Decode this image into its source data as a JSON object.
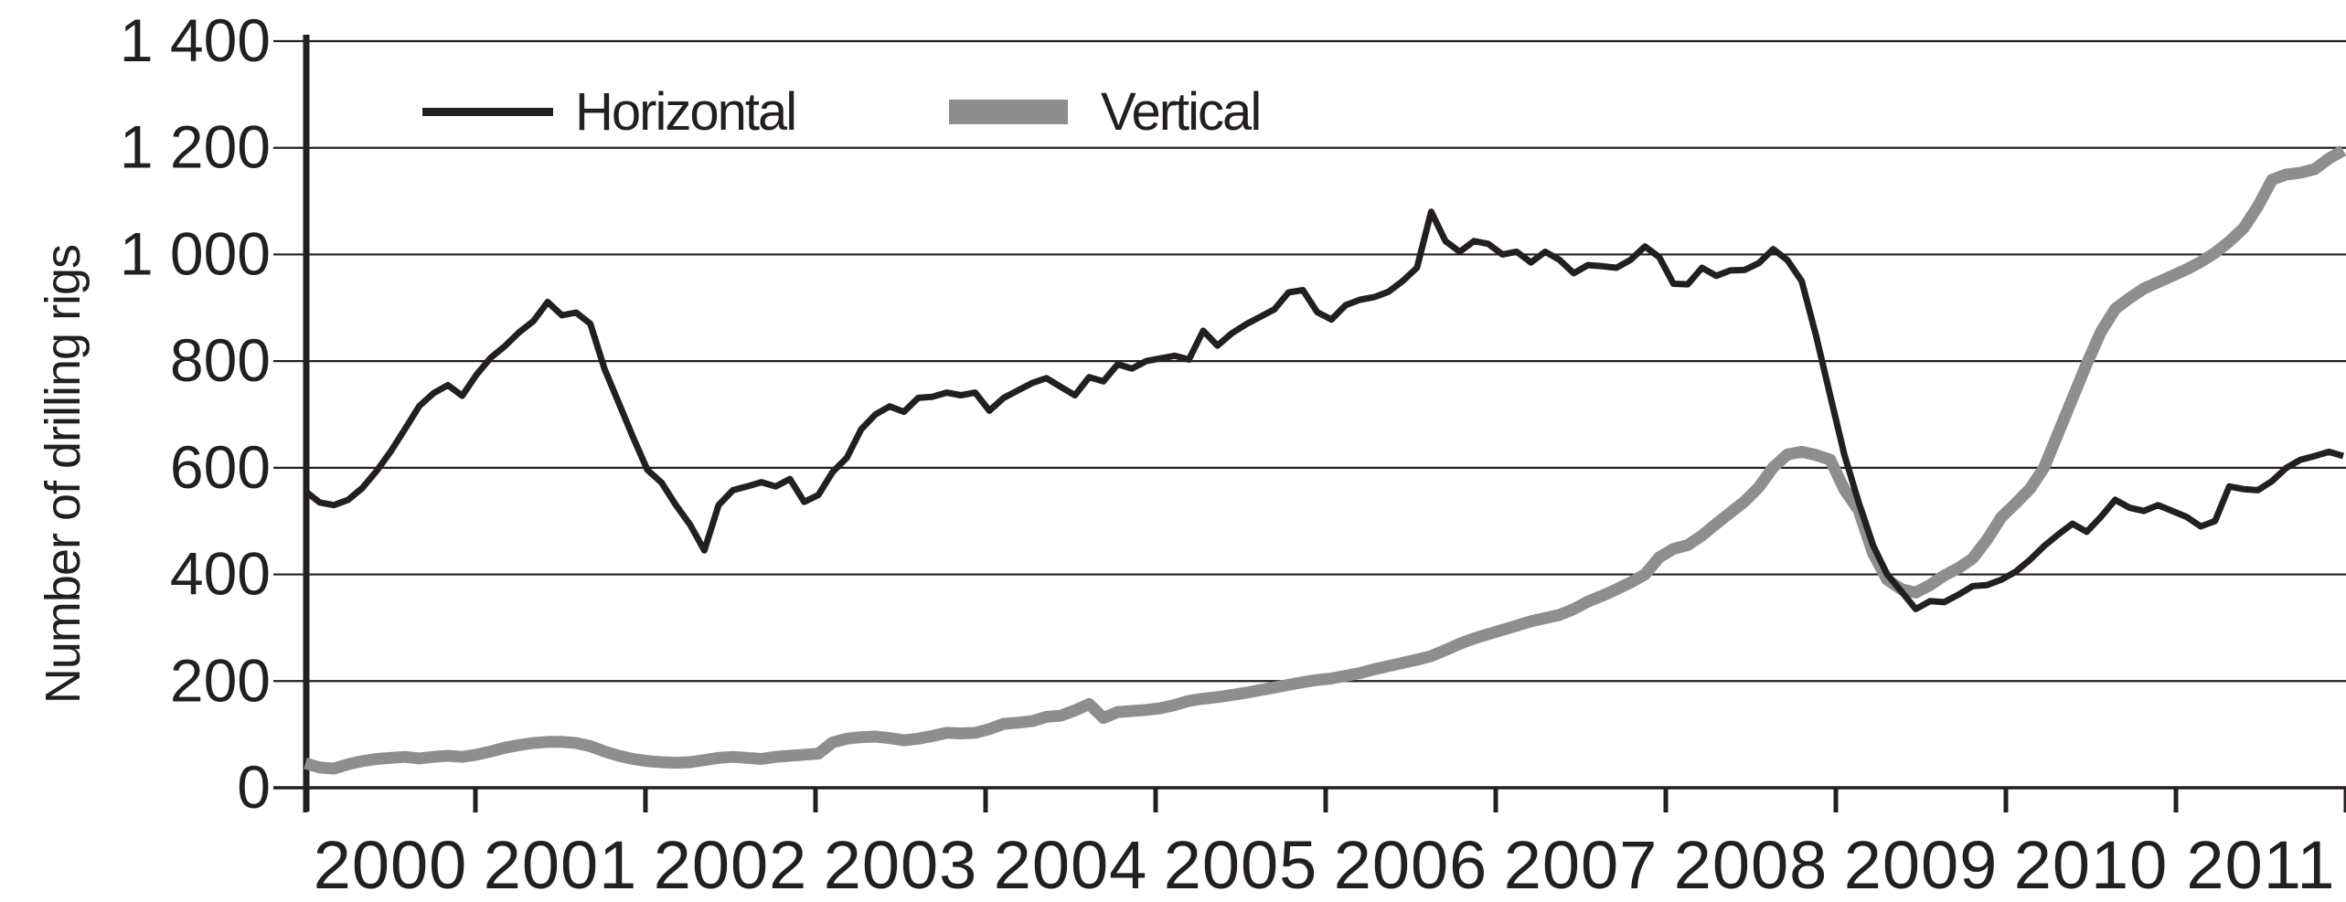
{
  "chart_data": {
    "type": "line",
    "title": "",
    "xlabel": "",
    "ylabel": "Number of drilling rigs",
    "ylim": [
      0,
      1400
    ],
    "grid": "horizontal",
    "legend_position": "top-inside",
    "y_ticks": [
      "0",
      "200",
      "400",
      "600",
      "800",
      "1 000",
      "1 200",
      "1 400"
    ],
    "y_tick_step": 200,
    "x_tick_labels": [
      "2000",
      "2001",
      "2002",
      "2003",
      "2004",
      "2005",
      "2006",
      "2007",
      "2008",
      "2009",
      "2010",
      "2011"
    ],
    "x_start": "2000-01",
    "x_end": "2011-12",
    "frequency": "monthly",
    "series": [
      {
        "name": "Horizontal",
        "color": "#231f20",
        "stroke_width": 7,
        "values": [
          556,
          535,
          530,
          540,
          562,
          594,
          631,
          673,
          716,
          740,
          755,
          735,
          774,
          806,
          828,
          854,
          875,
          911,
          886,
          891,
          870,
          785,
          721,
          657,
          596,
          572,
          530,
          493,
          445,
          530,
          558,
          565,
          573,
          565,
          579,
          536,
          549,
          592,
          619,
          672,
          700,
          715,
          705,
          731,
          733,
          741,
          736,
          741,
          707,
          731,
          745,
          759,
          768,
          752,
          736,
          770,
          762,
          794,
          786,
          800,
          805,
          810,
          803,
          857,
          829,
          852,
          869,
          883,
          897,
          929,
          933,
          892,
          878,
          905,
          915,
          920,
          930,
          950,
          975,
          1080,
          1025,
          1005,
          1025,
          1020,
          1000,
          1005,
          985,
          1005,
          990,
          965,
          980,
          978,
          975,
          990,
          1015,
          995,
          945,
          944,
          975,
          960,
          970,
          971,
          984,
          1010,
          989,
          950,
          848,
          735,
          624,
          535,
          455,
          400,
          368,
          335,
          350,
          348,
          362,
          378,
          380,
          390,
          405,
          427,
          453,
          475,
          495,
          480,
          508,
          540,
          525,
          519,
          530,
          519,
          508,
          490,
          500,
          565,
          560,
          558,
          575,
          600,
          615,
          622,
          630,
          622
        ]
      },
      {
        "name": "Vertical",
        "color": "#8d8e90",
        "stroke_width": 13,
        "values": [
          46,
          38,
          36,
          44,
          50,
          54,
          56,
          58,
          55,
          58,
          60,
          58,
          62,
          68,
          75,
          80,
          84,
          86,
          86,
          84,
          78,
          68,
          60,
          54,
          50,
          48,
          47,
          48,
          52,
          56,
          58,
          56,
          54,
          58,
          60,
          62,
          64,
          85,
          92,
          95,
          96,
          93,
          89,
          92,
          97,
          103,
          102,
          103,
          110,
          120,
          122,
          125,
          133,
          135,
          145,
          157,
          131,
          142,
          144,
          146,
          149,
          155,
          163,
          167,
          170,
          174,
          178,
          183,
          188,
          193,
          198,
          202,
          205,
          210,
          215,
          222,
          228,
          234,
          240,
          247,
          258,
          270,
          280,
          288,
          296,
          304,
          312,
          318,
          324,
          335,
          349,
          360,
          372,
          385,
          400,
          432,
          448,
          455,
          473,
          495,
          516,
          537,
          564,
          601,
          625,
          630,
          624,
          615,
          559,
          520,
          440,
          390,
          372,
          366,
          380,
          398,
          412,
          430,
          465,
          507,
          533,
          560,
          600,
          665,
          730,
          795,
          855,
          898,
          918,
          936,
          948,
          960,
          972,
          986,
          1003,
          1024,
          1049,
          1090,
          1140,
          1150,
          1153,
          1160,
          1180,
          1195
        ]
      }
    ]
  },
  "legend": {
    "horizontal_label": "Horizontal",
    "vertical_label": "Vertical"
  },
  "axis_color": "#231f20",
  "gridline_color": "#231f20"
}
